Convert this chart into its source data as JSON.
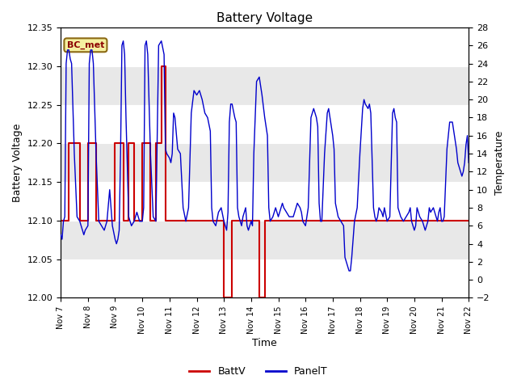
{
  "title": "Battery Voltage",
  "xlabel": "Time",
  "ylabel_left": "Battery Voltage",
  "ylabel_right": "Temperature",
  "annotation": "BC_met",
  "xlim_days": [
    7,
    22
  ],
  "ylim_left": [
    12.0,
    12.35
  ],
  "ylim_right": [
    -2,
    28
  ],
  "yticks_left": [
    12.0,
    12.05,
    12.1,
    12.15,
    12.2,
    12.25,
    12.3,
    12.35
  ],
  "yticks_right": [
    -2,
    0,
    2,
    4,
    6,
    8,
    10,
    12,
    14,
    16,
    18,
    20,
    22,
    24,
    26,
    28
  ],
  "xtick_labels": [
    "Nov 7",
    "Nov 8",
    "Nov 9",
    "Nov 10",
    "Nov 11",
    "Nov 12",
    "Nov 13",
    "Nov 14",
    "Nov 15",
    "Nov 16",
    "Nov 17",
    "Nov 18",
    "Nov 19",
    "Nov 20",
    "Nov 21",
    "Nov 22"
  ],
  "background_color": "#ffffff",
  "plot_background": "#e8e8e8",
  "band_color_light": "#f0f0f0",
  "band_color_dark": "#d8d8d8",
  "batt_color": "#cc0000",
  "panel_color": "#0000cc",
  "legend_batt": "BattV",
  "legend_panel": "PanelT",
  "batt_data": [
    [
      7.0,
      12.1
    ],
    [
      7.3,
      12.1
    ],
    [
      7.3,
      12.2
    ],
    [
      7.7,
      12.2
    ],
    [
      7.7,
      12.1
    ],
    [
      8.0,
      12.1
    ],
    [
      8.0,
      12.2
    ],
    [
      8.3,
      12.2
    ],
    [
      8.3,
      12.1
    ],
    [
      8.5,
      12.1
    ],
    [
      8.5,
      12.1
    ],
    [
      9.0,
      12.1
    ],
    [
      9.0,
      12.2
    ],
    [
      9.3,
      12.2
    ],
    [
      9.3,
      12.1
    ],
    [
      9.5,
      12.1
    ],
    [
      9.5,
      12.2
    ],
    [
      9.7,
      12.2
    ],
    [
      9.7,
      12.1
    ],
    [
      10.0,
      12.1
    ],
    [
      10.0,
      12.2
    ],
    [
      10.3,
      12.2
    ],
    [
      10.3,
      12.1
    ],
    [
      10.5,
      12.1
    ],
    [
      10.5,
      12.2
    ],
    [
      10.7,
      12.2
    ],
    [
      10.7,
      12.3
    ],
    [
      10.85,
      12.3
    ],
    [
      10.85,
      12.1
    ],
    [
      11.0,
      12.1
    ],
    [
      13.0,
      12.1
    ],
    [
      13.0,
      12.0
    ],
    [
      13.3,
      12.0
    ],
    [
      13.3,
      12.1
    ],
    [
      13.5,
      12.1
    ],
    [
      13.5,
      12.1
    ],
    [
      14.0,
      12.1
    ],
    [
      14.0,
      12.1
    ],
    [
      14.3,
      12.1
    ],
    [
      14.3,
      12.0
    ],
    [
      14.5,
      12.0
    ],
    [
      14.5,
      12.1
    ],
    [
      15.0,
      12.1
    ],
    [
      22.0,
      12.1
    ]
  ],
  "panel_data": [
    [
      7.0,
      5.0
    ],
    [
      7.05,
      4.5
    ],
    [
      7.1,
      6.5
    ],
    [
      7.15,
      7.0
    ],
    [
      7.2,
      24.0
    ],
    [
      7.25,
      25.5
    ],
    [
      7.3,
      25.5
    ],
    [
      7.35,
      24.5
    ],
    [
      7.4,
      24.0
    ],
    [
      7.5,
      14.0
    ],
    [
      7.6,
      7.0
    ],
    [
      7.7,
      6.5
    ],
    [
      7.8,
      5.5
    ],
    [
      7.85,
      5.0
    ],
    [
      7.9,
      5.5
    ],
    [
      8.0,
      6.0
    ],
    [
      8.05,
      24.0
    ],
    [
      8.1,
      25.5
    ],
    [
      8.15,
      25.5
    ],
    [
      8.2,
      24.0
    ],
    [
      8.3,
      14.0
    ],
    [
      8.4,
      6.5
    ],
    [
      8.5,
      6.0
    ],
    [
      8.6,
      5.5
    ],
    [
      8.7,
      6.5
    ],
    [
      8.8,
      10.0
    ],
    [
      8.9,
      6.0
    ],
    [
      9.0,
      4.5
    ],
    [
      9.05,
      4.0
    ],
    [
      9.1,
      4.5
    ],
    [
      9.15,
      5.5
    ],
    [
      9.2,
      14.0
    ],
    [
      9.25,
      26.0
    ],
    [
      9.3,
      26.5
    ],
    [
      9.35,
      25.0
    ],
    [
      9.4,
      18.0
    ],
    [
      9.5,
      7.0
    ],
    [
      9.6,
      6.0
    ],
    [
      9.7,
      6.5
    ],
    [
      9.8,
      7.5
    ],
    [
      9.9,
      6.5
    ],
    [
      10.0,
      6.5
    ],
    [
      10.05,
      8.0
    ],
    [
      10.1,
      26.0
    ],
    [
      10.15,
      26.5
    ],
    [
      10.2,
      25.0
    ],
    [
      10.3,
      14.0
    ],
    [
      10.4,
      7.0
    ],
    [
      10.5,
      6.5
    ],
    [
      10.6,
      26.0
    ],
    [
      10.7,
      26.5
    ],
    [
      10.8,
      25.0
    ],
    [
      10.85,
      14.5
    ],
    [
      10.9,
      14.0
    ],
    [
      11.0,
      13.5
    ],
    [
      11.05,
      13.0
    ],
    [
      11.1,
      14.0
    ],
    [
      11.15,
      18.5
    ],
    [
      11.2,
      18.0
    ],
    [
      11.3,
      14.5
    ],
    [
      11.4,
      14.0
    ],
    [
      11.5,
      8.0
    ],
    [
      11.6,
      6.5
    ],
    [
      11.7,
      8.0
    ],
    [
      11.8,
      18.5
    ],
    [
      11.9,
      21.0
    ],
    [
      12.0,
      20.5
    ],
    [
      12.1,
      21.0
    ],
    [
      12.2,
      20.0
    ],
    [
      12.3,
      18.5
    ],
    [
      12.4,
      18.0
    ],
    [
      12.5,
      16.5
    ],
    [
      12.55,
      8.0
    ],
    [
      12.6,
      6.5
    ],
    [
      12.7,
      6.0
    ],
    [
      12.8,
      7.5
    ],
    [
      12.9,
      8.0
    ],
    [
      13.0,
      6.5
    ],
    [
      13.05,
      6.0
    ],
    [
      13.1,
      5.5
    ],
    [
      13.15,
      7.5
    ],
    [
      13.2,
      17.5
    ],
    [
      13.25,
      19.5
    ],
    [
      13.3,
      19.5
    ],
    [
      13.4,
      18.0
    ],
    [
      13.45,
      17.5
    ],
    [
      13.5,
      8.0
    ],
    [
      13.55,
      7.0
    ],
    [
      13.6,
      6.5
    ],
    [
      13.65,
      6.0
    ],
    [
      13.7,
      7.0
    ],
    [
      13.75,
      7.5
    ],
    [
      13.8,
      8.0
    ],
    [
      13.85,
      6.0
    ],
    [
      13.9,
      5.5
    ],
    [
      13.95,
      6.0
    ],
    [
      14.0,
      6.5
    ],
    [
      14.05,
      6.0
    ],
    [
      14.1,
      14.0
    ],
    [
      14.2,
      22.0
    ],
    [
      14.3,
      22.5
    ],
    [
      14.4,
      20.5
    ],
    [
      14.5,
      18.0
    ],
    [
      14.6,
      16.0
    ],
    [
      14.65,
      8.0
    ],
    [
      14.7,
      6.5
    ],
    [
      14.8,
      7.0
    ],
    [
      14.85,
      7.5
    ],
    [
      14.9,
      8.0
    ],
    [
      14.95,
      7.5
    ],
    [
      15.0,
      7.0
    ],
    [
      15.05,
      7.5
    ],
    [
      15.1,
      8.0
    ],
    [
      15.15,
      8.5
    ],
    [
      15.2,
      8.0
    ],
    [
      15.3,
      7.5
    ],
    [
      15.4,
      7.0
    ],
    [
      15.5,
      7.0
    ],
    [
      15.55,
      7.0
    ],
    [
      15.6,
      7.5
    ],
    [
      15.65,
      8.0
    ],
    [
      15.7,
      8.5
    ],
    [
      15.8,
      8.0
    ],
    [
      15.85,
      7.5
    ],
    [
      15.9,
      6.5
    ],
    [
      16.0,
      6.0
    ],
    [
      16.05,
      7.0
    ],
    [
      16.1,
      8.0
    ],
    [
      16.2,
      18.0
    ],
    [
      16.3,
      19.0
    ],
    [
      16.4,
      18.0
    ],
    [
      16.45,
      17.0
    ],
    [
      16.5,
      8.5
    ],
    [
      16.55,
      6.5
    ],
    [
      16.6,
      6.5
    ],
    [
      16.7,
      14.0
    ],
    [
      16.8,
      18.5
    ],
    [
      16.85,
      19.0
    ],
    [
      16.9,
      18.0
    ],
    [
      17.0,
      16.0
    ],
    [
      17.05,
      14.5
    ],
    [
      17.1,
      8.5
    ],
    [
      17.2,
      7.0
    ],
    [
      17.3,
      6.5
    ],
    [
      17.4,
      6.0
    ],
    [
      17.45,
      2.5
    ],
    [
      17.5,
      2.0
    ],
    [
      17.55,
      1.5
    ],
    [
      17.6,
      1.0
    ],
    [
      17.65,
      1.0
    ],
    [
      17.7,
      2.5
    ],
    [
      17.8,
      6.5
    ],
    [
      17.9,
      8.0
    ],
    [
      18.0,
      14.0
    ],
    [
      18.1,
      19.0
    ],
    [
      18.15,
      20.0
    ],
    [
      18.2,
      19.5
    ],
    [
      18.3,
      19.0
    ],
    [
      18.35,
      19.5
    ],
    [
      18.4,
      18.5
    ],
    [
      18.5,
      8.0
    ],
    [
      18.55,
      7.0
    ],
    [
      18.6,
      6.5
    ],
    [
      18.65,
      7.0
    ],
    [
      18.7,
      8.0
    ],
    [
      18.8,
      7.5
    ],
    [
      18.85,
      7.0
    ],
    [
      18.9,
      8.0
    ],
    [
      19.0,
      6.5
    ],
    [
      19.1,
      7.0
    ],
    [
      19.2,
      18.5
    ],
    [
      19.25,
      19.0
    ],
    [
      19.3,
      18.0
    ],
    [
      19.35,
      17.5
    ],
    [
      19.4,
      8.0
    ],
    [
      19.5,
      7.0
    ],
    [
      19.6,
      6.5
    ],
    [
      19.7,
      7.0
    ],
    [
      19.8,
      7.5
    ],
    [
      19.85,
      8.0
    ],
    [
      19.9,
      6.5
    ],
    [
      19.95,
      6.0
    ],
    [
      20.0,
      5.5
    ],
    [
      20.05,
      6.0
    ],
    [
      20.1,
      8.0
    ],
    [
      20.15,
      7.5
    ],
    [
      20.2,
      7.0
    ],
    [
      20.3,
      6.5
    ],
    [
      20.35,
      6.0
    ],
    [
      20.4,
      5.5
    ],
    [
      20.45,
      6.0
    ],
    [
      20.5,
      6.5
    ],
    [
      20.55,
      8.0
    ],
    [
      20.6,
      7.5
    ],
    [
      20.7,
      8.0
    ],
    [
      20.8,
      7.0
    ],
    [
      20.85,
      6.5
    ],
    [
      20.9,
      7.5
    ],
    [
      20.95,
      8.0
    ],
    [
      21.0,
      6.5
    ],
    [
      21.05,
      6.5
    ],
    [
      21.1,
      7.0
    ],
    [
      21.2,
      14.5
    ],
    [
      21.3,
      17.5
    ],
    [
      21.4,
      17.5
    ],
    [
      21.45,
      16.5
    ],
    [
      21.5,
      15.5
    ],
    [
      21.55,
      14.5
    ],
    [
      21.6,
      13.0
    ],
    [
      21.7,
      12.0
    ],
    [
      21.75,
      11.5
    ],
    [
      21.8,
      12.0
    ],
    [
      21.85,
      13.0
    ],
    [
      21.9,
      15.0
    ],
    [
      21.95,
      16.0
    ],
    [
      22.0,
      13.0
    ]
  ],
  "hband_pairs": [
    [
      12.3,
      12.35
    ],
    [
      12.2,
      12.25
    ],
    [
      12.1,
      12.15
    ],
    [
      12.0,
      12.05
    ]
  ]
}
